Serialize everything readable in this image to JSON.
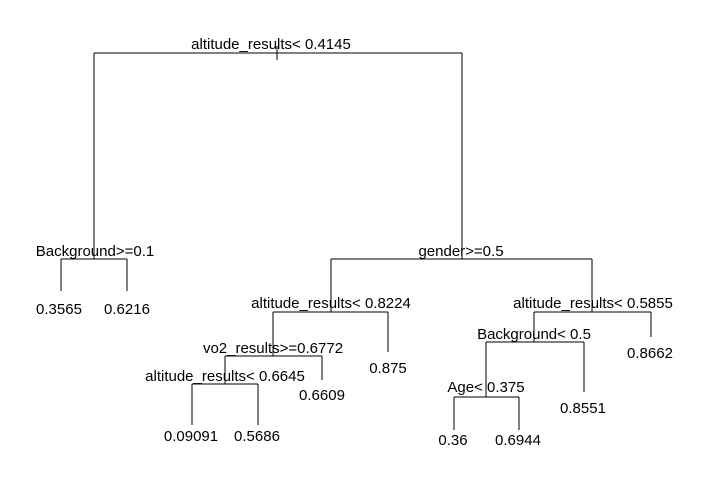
{
  "tree": {
    "line_color": "#000000",
    "background": "#ffffff",
    "nodes": [
      {
        "id": "n1",
        "label": "altitude_results< 0.4145",
        "type": "split"
      },
      {
        "id": "n2",
        "label": "Background>=0.1",
        "type": "split"
      },
      {
        "id": "n3",
        "label": "gender>=0.5",
        "type": "split"
      },
      {
        "id": "n4",
        "label": "altitude_results< 0.8224",
        "type": "split"
      },
      {
        "id": "n5",
        "label": "altitude_results< 0.5855",
        "type": "split"
      },
      {
        "id": "n6",
        "label": "vo2_results>=0.6772",
        "type": "split"
      },
      {
        "id": "n7",
        "label": "altitude_results< 0.6645",
        "type": "split"
      },
      {
        "id": "n8",
        "label": "Background< 0.5",
        "type": "split"
      },
      {
        "id": "n9",
        "label": "Age< 0.375",
        "type": "split"
      },
      {
        "id": "l1",
        "label": "0.3565",
        "type": "leaf"
      },
      {
        "id": "l2",
        "label": "0.6216",
        "type": "leaf"
      },
      {
        "id": "l3",
        "label": "0.875",
        "type": "leaf"
      },
      {
        "id": "l4",
        "label": "0.6609",
        "type": "leaf"
      },
      {
        "id": "l5",
        "label": "0.09091",
        "type": "leaf"
      },
      {
        "id": "l6",
        "label": "0.5686",
        "type": "leaf"
      },
      {
        "id": "l7",
        "label": "0.8662",
        "type": "leaf"
      },
      {
        "id": "l8",
        "label": "0.8551",
        "type": "leaf"
      },
      {
        "id": "l9",
        "label": "0.36",
        "type": "leaf"
      },
      {
        "id": "l10",
        "label": "0.6944",
        "type": "leaf"
      }
    ],
    "edges": [
      {
        "parent": "n1",
        "left": "n2",
        "right": "n3"
      },
      {
        "parent": "n2",
        "left": "l1",
        "right": "l2"
      },
      {
        "parent": "n3",
        "left": "n4",
        "right": "n5"
      },
      {
        "parent": "n4",
        "left": "n6",
        "right": "l3"
      },
      {
        "parent": "n6",
        "left": "n7",
        "right": "l4"
      },
      {
        "parent": "n7",
        "left": "l5",
        "right": "l6"
      },
      {
        "parent": "n5",
        "left": "n8",
        "right": "l7"
      },
      {
        "parent": "n8",
        "left": "n9",
        "right": "l8"
      },
      {
        "parent": "n9",
        "left": "l9",
        "right": "l10"
      }
    ]
  }
}
